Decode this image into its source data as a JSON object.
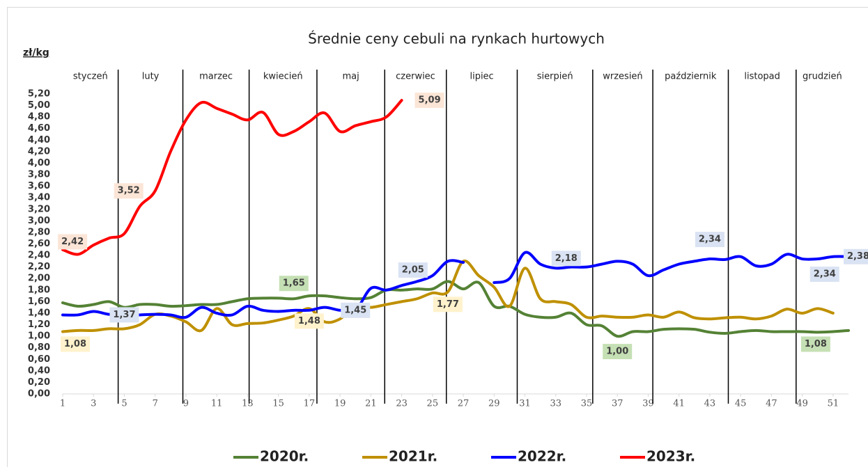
{
  "chart_data": {
    "type": "line",
    "title": "Średnie ceny cebuli na rynkach hurtowych",
    "y_label": "zł/kg",
    "x": [
      1,
      2,
      3,
      4,
      5,
      6,
      7,
      8,
      9,
      10,
      11,
      12,
      13,
      14,
      15,
      16,
      17,
      18,
      19,
      20,
      21,
      22,
      23,
      24,
      25,
      26,
      27,
      28,
      29,
      30,
      31,
      32,
      33,
      34,
      35,
      36,
      37,
      38,
      39,
      40,
      41,
      42,
      43,
      44,
      45,
      46,
      47,
      48,
      49,
      50,
      51,
      52
    ],
    "xlim": [
      1,
      52
    ],
    "xticks": [
      1,
      3,
      5,
      7,
      9,
      11,
      13,
      15,
      17,
      19,
      21,
      23,
      25,
      27,
      29,
      31,
      33,
      35,
      37,
      39,
      41,
      43,
      45,
      47,
      49,
      51
    ],
    "ylim": [
      0,
      5.2
    ],
    "yticks": [
      {
        "value": 0,
        "label": "0,00"
      },
      {
        "value": 0.2,
        "label": "0,20"
      },
      {
        "value": 0.4,
        "label": "0,40"
      },
      {
        "value": 0.6,
        "label": "0,60"
      },
      {
        "value": 0.8,
        "label": "0,80"
      },
      {
        "value": 1,
        "label": "1,00"
      },
      {
        "value": 1.2,
        "label": "1,20"
      },
      {
        "value": 1.4,
        "label": "1,40"
      },
      {
        "value": 1.6,
        "label": "1,60"
      },
      {
        "value": 1.8,
        "label": "1,80"
      },
      {
        "value": 2,
        "label": "2,00"
      },
      {
        "value": 2.2,
        "label": "2,20"
      },
      {
        "value": 2.4,
        "label": "2,40"
      },
      {
        "value": 2.6,
        "label": "2,60"
      },
      {
        "value": 2.8,
        "label": "2,80"
      },
      {
        "value": 3,
        "label": "3,00"
      },
      {
        "value": 3.2,
        "label": "3,20"
      },
      {
        "value": 3.4,
        "label": "3,40"
      },
      {
        "value": 3.6,
        "label": "3,60"
      },
      {
        "value": 3.8,
        "label": "3,80"
      },
      {
        "value": 4,
        "label": "4,00"
      },
      {
        "value": 4.2,
        "label": "4,20"
      },
      {
        "value": 4.4,
        "label": "4,40"
      },
      {
        "value": 4.6,
        "label": "4,60"
      },
      {
        "value": 4.8,
        "label": "4,80"
      },
      {
        "value": 5,
        "label": "5,00"
      },
      {
        "value": 5.2,
        "label": "5,20"
      }
    ],
    "months": [
      "styczeń",
      "luty",
      "marzec",
      "kwiecień",
      "maj",
      "czerwiec",
      "lipiec",
      "sierpień",
      "wrzesień",
      "październik",
      "listopad",
      "grudzień"
    ],
    "month_bounds": [
      1,
      4.6,
      8.8,
      13.1,
      17.5,
      21.9,
      25.9,
      30.5,
      35.4,
      39.3,
      44.2,
      48.6,
      52
    ],
    "legend": "bottom",
    "series": [
      {
        "name": "2020r.",
        "color": "#548235",
        "label_color": "#c5e0b4",
        "values": [
          1.58,
          1.52,
          1.55,
          1.6,
          1.5,
          1.55,
          1.55,
          1.52,
          1.53,
          1.55,
          1.55,
          1.6,
          1.65,
          1.66,
          1.66,
          1.65,
          1.7,
          1.7,
          1.67,
          1.65,
          1.67,
          1.8,
          1.8,
          1.82,
          1.82,
          1.95,
          1.82,
          1.93,
          1.52,
          1.52,
          1.38,
          1.33,
          1.33,
          1.4,
          1.2,
          1.18,
          1.0,
          1.08,
          1.08,
          1.12,
          1.13,
          1.12,
          1.07,
          1.05,
          1.08,
          1.1,
          1.08,
          1.08,
          1.08,
          1.07,
          1.08,
          1.1
        ],
        "value_labels": [
          null,
          null,
          null,
          null,
          null,
          null,
          null,
          null,
          null,
          null,
          null,
          null,
          null,
          null,
          null,
          "1,65",
          null,
          null,
          null,
          null,
          null,
          null,
          null,
          null,
          null,
          null,
          null,
          null,
          null,
          null,
          null,
          null,
          null,
          null,
          null,
          null,
          "1,00",
          null,
          null,
          null,
          null,
          null,
          null,
          null,
          null,
          null,
          null,
          null,
          null,
          null,
          "1,08",
          null
        ]
      },
      {
        "name": "2021r.",
        "color": "#bf9000",
        "label_color": "#fff2cc",
        "values": [
          1.08,
          1.1,
          1.1,
          1.13,
          1.13,
          1.2,
          1.38,
          1.35,
          1.25,
          1.1,
          1.48,
          1.2,
          1.22,
          1.23,
          1.28,
          1.35,
          1.48,
          1.25,
          1.3,
          1.52,
          1.5,
          1.55,
          1.6,
          1.65,
          1.75,
          1.77,
          2.3,
          2.05,
          1.85,
          1.52,
          2.18,
          1.65,
          1.6,
          1.55,
          1.33,
          1.35,
          1.33,
          1.33,
          1.37,
          1.33,
          1.42,
          1.32,
          1.3,
          1.32,
          1.33,
          1.3,
          1.35,
          1.47,
          1.4,
          1.48,
          1.4,
          null
        ],
        "value_labels": [
          "1,08",
          null,
          null,
          null,
          null,
          null,
          null,
          null,
          null,
          null,
          null,
          null,
          null,
          null,
          null,
          null,
          "1,48",
          null,
          null,
          null,
          null,
          null,
          null,
          null,
          null,
          "1,77",
          null,
          null,
          null,
          null,
          null,
          null,
          null,
          null,
          null,
          null,
          null,
          null,
          null,
          null,
          null,
          null,
          null,
          null,
          null,
          null,
          null,
          null,
          null,
          null,
          null,
          null
        ]
      },
      {
        "name": "2022r.",
        "color": "#0000ff",
        "label_color": "#dae3f3",
        "values": [
          1.37,
          1.37,
          1.43,
          1.38,
          1.37,
          1.37,
          1.38,
          1.37,
          1.33,
          1.5,
          1.4,
          1.37,
          1.52,
          1.45,
          1.43,
          1.45,
          1.45,
          1.5,
          1.45,
          1.45,
          1.83,
          1.8,
          1.88,
          1.95,
          2.05,
          2.3,
          2.28,
          null,
          1.93,
          2.0,
          2.45,
          2.25,
          2.18,
          2.2,
          2.2,
          2.25,
          2.3,
          2.25,
          2.05,
          2.15,
          2.25,
          2.3,
          2.34,
          2.33,
          2.38,
          2.22,
          2.25,
          2.42,
          2.34,
          2.34,
          2.38,
          2.38
        ],
        "value_labels": [
          null,
          null,
          null,
          null,
          "1,37",
          null,
          null,
          null,
          null,
          null,
          null,
          null,
          null,
          null,
          null,
          null,
          null,
          null,
          null,
          "1,45",
          null,
          null,
          null,
          null,
          "2,05",
          null,
          null,
          null,
          null,
          null,
          null,
          null,
          "2,18",
          null,
          null,
          null,
          null,
          null,
          null,
          null,
          null,
          null,
          "2,34",
          null,
          null,
          null,
          null,
          null,
          null,
          "2,34",
          null,
          "2,38"
        ]
      },
      {
        "name": "2023r.",
        "color": "#ff0000",
        "label_color": "#fbe5d6",
        "values": [
          2.5,
          2.42,
          2.58,
          2.7,
          2.78,
          3.25,
          3.52,
          4.2,
          4.75,
          5.05,
          4.95,
          4.85,
          4.75,
          4.88,
          4.5,
          4.55,
          4.72,
          4.87,
          4.55,
          4.65,
          4.72,
          4.8,
          5.09,
          null,
          null,
          null,
          null,
          null,
          null,
          null,
          null,
          null,
          null,
          null,
          null,
          null,
          null,
          null,
          null,
          null,
          null,
          null,
          null,
          null,
          null,
          null,
          null,
          null,
          null,
          null,
          null,
          null
        ],
        "value_labels": [
          null,
          "2,42",
          null,
          null,
          null,
          null,
          "3,52",
          null,
          null,
          null,
          null,
          null,
          null,
          null,
          null,
          null,
          null,
          null,
          null,
          null,
          null,
          null,
          "5,09",
          null,
          null,
          null,
          null,
          null,
          null,
          null,
          null,
          null,
          null,
          null,
          null,
          null,
          null,
          null,
          null,
          null,
          null,
          null,
          null,
          null,
          null,
          null,
          null,
          null,
          null,
          null,
          null,
          null
        ]
      }
    ]
  }
}
